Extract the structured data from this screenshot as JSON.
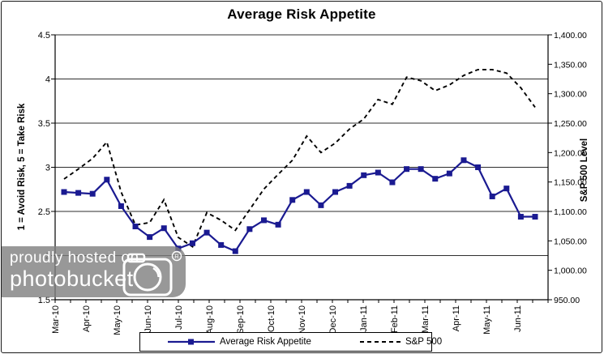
{
  "title": "Average Risk Appetite",
  "watermark": {
    "line1": "proudly hosted on",
    "line2": "photobucket",
    "registered": "R"
  },
  "colors": {
    "risk_series": "#1a1a91",
    "sp500_series": "#000000",
    "grid": "#2e2e2e",
    "axis": "#000000",
    "watermark_bg": "#7e7e7e"
  },
  "chart_data": {
    "type": "line",
    "title": "Average Risk Appetite",
    "legend_position": "bottom",
    "grid": "horizontal",
    "left_axis": {
      "label": "1 = Avoid Risk, 5 = Take Risk",
      "min": 1.5,
      "max": 4.5,
      "step": 0.5,
      "ticks": [
        "4.5",
        "4",
        "3.5",
        "3",
        "2.5",
        "2",
        "1.5"
      ]
    },
    "right_axis": {
      "label": "S&P 500 Level",
      "min": 950,
      "max": 1400,
      "step": 50,
      "ticks": [
        "1,400.00",
        "1,350.00",
        "1,300.00",
        "1,250.00",
        "1,200.00",
        "1,150.00",
        "1,100.00",
        "1,050.00",
        "1,000.00",
        "950.00"
      ]
    },
    "x_axis": {
      "categories": [
        "Mar-10",
        "Apr-10",
        "May-10",
        "Jun-10",
        "Jul-10",
        "Aug-10",
        "Sep-10",
        "Oct-10",
        "Nov-10",
        "Dec-10",
        "Jan-11",
        "Feb-11",
        "Mar-11",
        "Apr-11",
        "May-11",
        "Jun-11"
      ]
    },
    "series": [
      {
        "name": "Average Risk Appetite",
        "axis": "left",
        "style": "solid",
        "marker": "square",
        "values": [
          2.72,
          2.71,
          2.7,
          2.86,
          2.56,
          2.33,
          2.21,
          2.31,
          2.08,
          2.14,
          2.26,
          2.12,
          2.05,
          2.3,
          2.4,
          2.35,
          2.63,
          2.72,
          2.57,
          2.72,
          2.79,
          2.91,
          2.94,
          2.83,
          2.98,
          2.98,
          2.87,
          2.93,
          3.08,
          3.0,
          2.67,
          2.76,
          2.44,
          2.44
        ]
      },
      {
        "name": "S&P 500",
        "axis": "right",
        "style": "dashed",
        "marker": "none",
        "values": [
          1155,
          1172,
          1190,
          1218,
          1133,
          1077,
          1081,
          1120,
          1056,
          1040,
          1098,
          1085,
          1068,
          1103,
          1138,
          1163,
          1187,
          1228,
          1200,
          1216,
          1240,
          1257,
          1290,
          1282,
          1328,
          1322,
          1305,
          1315,
          1331,
          1341,
          1341,
          1335,
          1310,
          1277
        ]
      }
    ]
  }
}
